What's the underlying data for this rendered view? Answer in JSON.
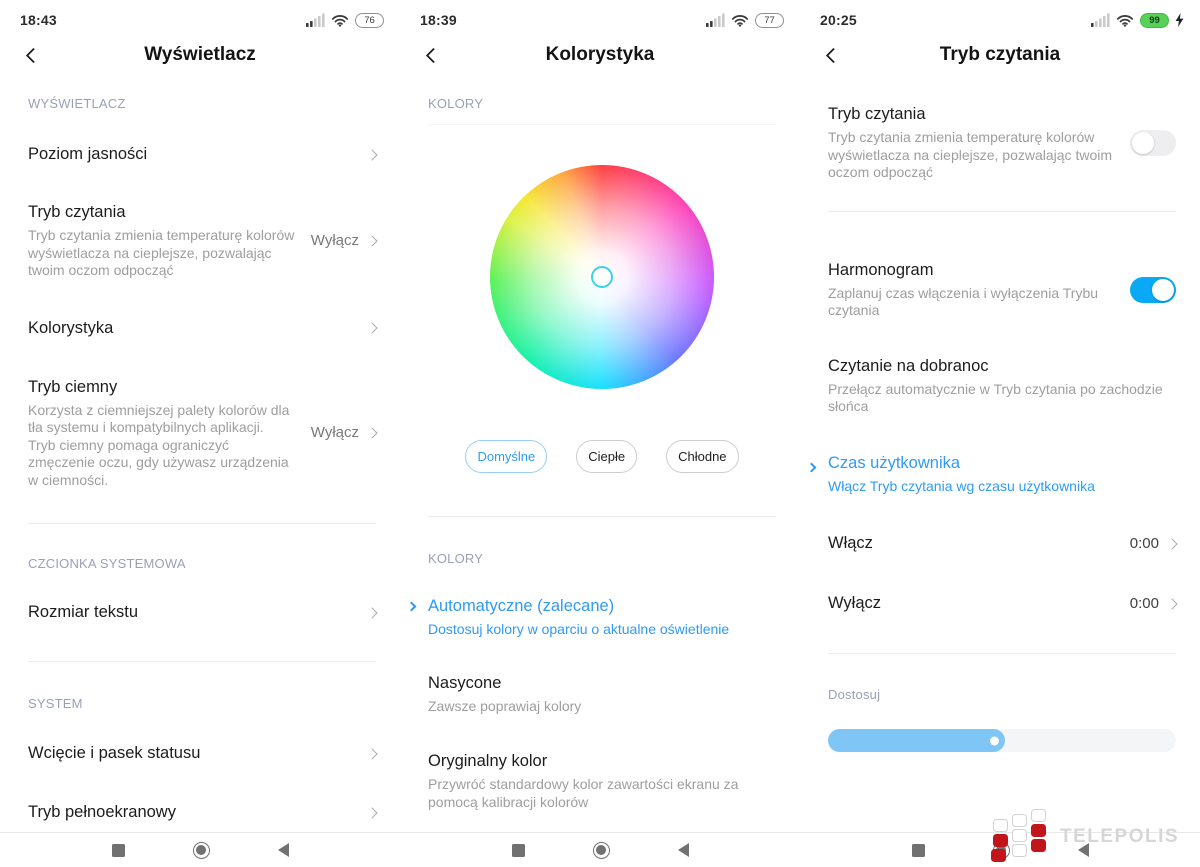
{
  "theme": {
    "accent": "#2F9BF4",
    "toggle_on": "#0AA9F5",
    "slider_fill": "#7FC6F7",
    "logo_red": "#C2151B",
    "battery_green": "#56D356"
  },
  "left": {
    "time": "18:43",
    "battery": "76",
    "title": "Wyświetlacz",
    "section1": "WYŚWIETLACZ",
    "brightness": {
      "title": "Poziom jasności"
    },
    "reading": {
      "title": "Tryb czytania",
      "subtitle": "Tryb czytania zmienia temperaturę kolorów wyświetlacza na cieplejsze, pozwalając twoim oczom odpocząć",
      "value": "Wyłącz"
    },
    "colors": {
      "title": "Kolorystyka"
    },
    "dark": {
      "title": "Tryb ciemny",
      "subtitle": "Korzysta z ciemniejszej palety kolorów dla tła systemu i kompatybilnych aplikacji. Tryb ciemny pomaga ograniczyć zmęczenie oczu, gdy używasz urządzenia w ciemności.",
      "value": "Wyłącz"
    },
    "section2": "CZCIONKA SYSTEMOWA",
    "textsize": {
      "title": "Rozmiar tekstu"
    },
    "section3": "SYSTEM",
    "statusbar": {
      "title": "Wcięcie i pasek statusu"
    },
    "fullscreen": {
      "title": "Tryb pełnoekranowy"
    }
  },
  "middle": {
    "time": "18:39",
    "battery": "77",
    "title": "Kolorystyka",
    "section1": "KOLORY",
    "pills": {
      "default": "Domyślne",
      "warm": "Ciepłe",
      "cool": "Chłodne"
    },
    "section2": "KOLORY",
    "auto": {
      "title": "Automatyczne (zalecane)",
      "subtitle": "Dostosuj kolory w oparciu o aktualne oświetlenie"
    },
    "saturated": {
      "title": "Nasycone",
      "subtitle": "Zawsze poprawiaj kolory"
    },
    "original": {
      "title": "Oryginalny kolor",
      "subtitle": "Przywróć standardowy kolor zawartości ekranu za pomocą kalibracji kolorów"
    }
  },
  "right": {
    "time": "20:25",
    "battery": "99",
    "title": "Tryb czytania",
    "reading": {
      "title": "Tryb czytania",
      "subtitle": "Tryb czytania zmienia temperaturę kolorów wyświetlacza na cieplejsze, pozwalając twoim oczom odpocząć",
      "enabled": false
    },
    "schedule": {
      "title": "Harmonogram",
      "subtitle": "Zaplanuj czas włączenia i wyłączenia Trybu czytania",
      "enabled": true
    },
    "bedtime": {
      "title": "Czytanie na dobranoc",
      "subtitle": "Przełącz automatycznie w Tryb czytania po zachodzie słońca"
    },
    "custom": {
      "title": "Czas użytkownika",
      "subtitle": "Włącz Tryb czytania wg czasu użytkownika"
    },
    "turn_on": {
      "title": "Włącz",
      "value": "0:00"
    },
    "turn_off": {
      "title": "Wyłącz",
      "value": "0:00"
    },
    "adjust": {
      "label": "Dostosuj",
      "percent": 51
    }
  },
  "watermark": {
    "brand": "TELEPOLIS"
  }
}
